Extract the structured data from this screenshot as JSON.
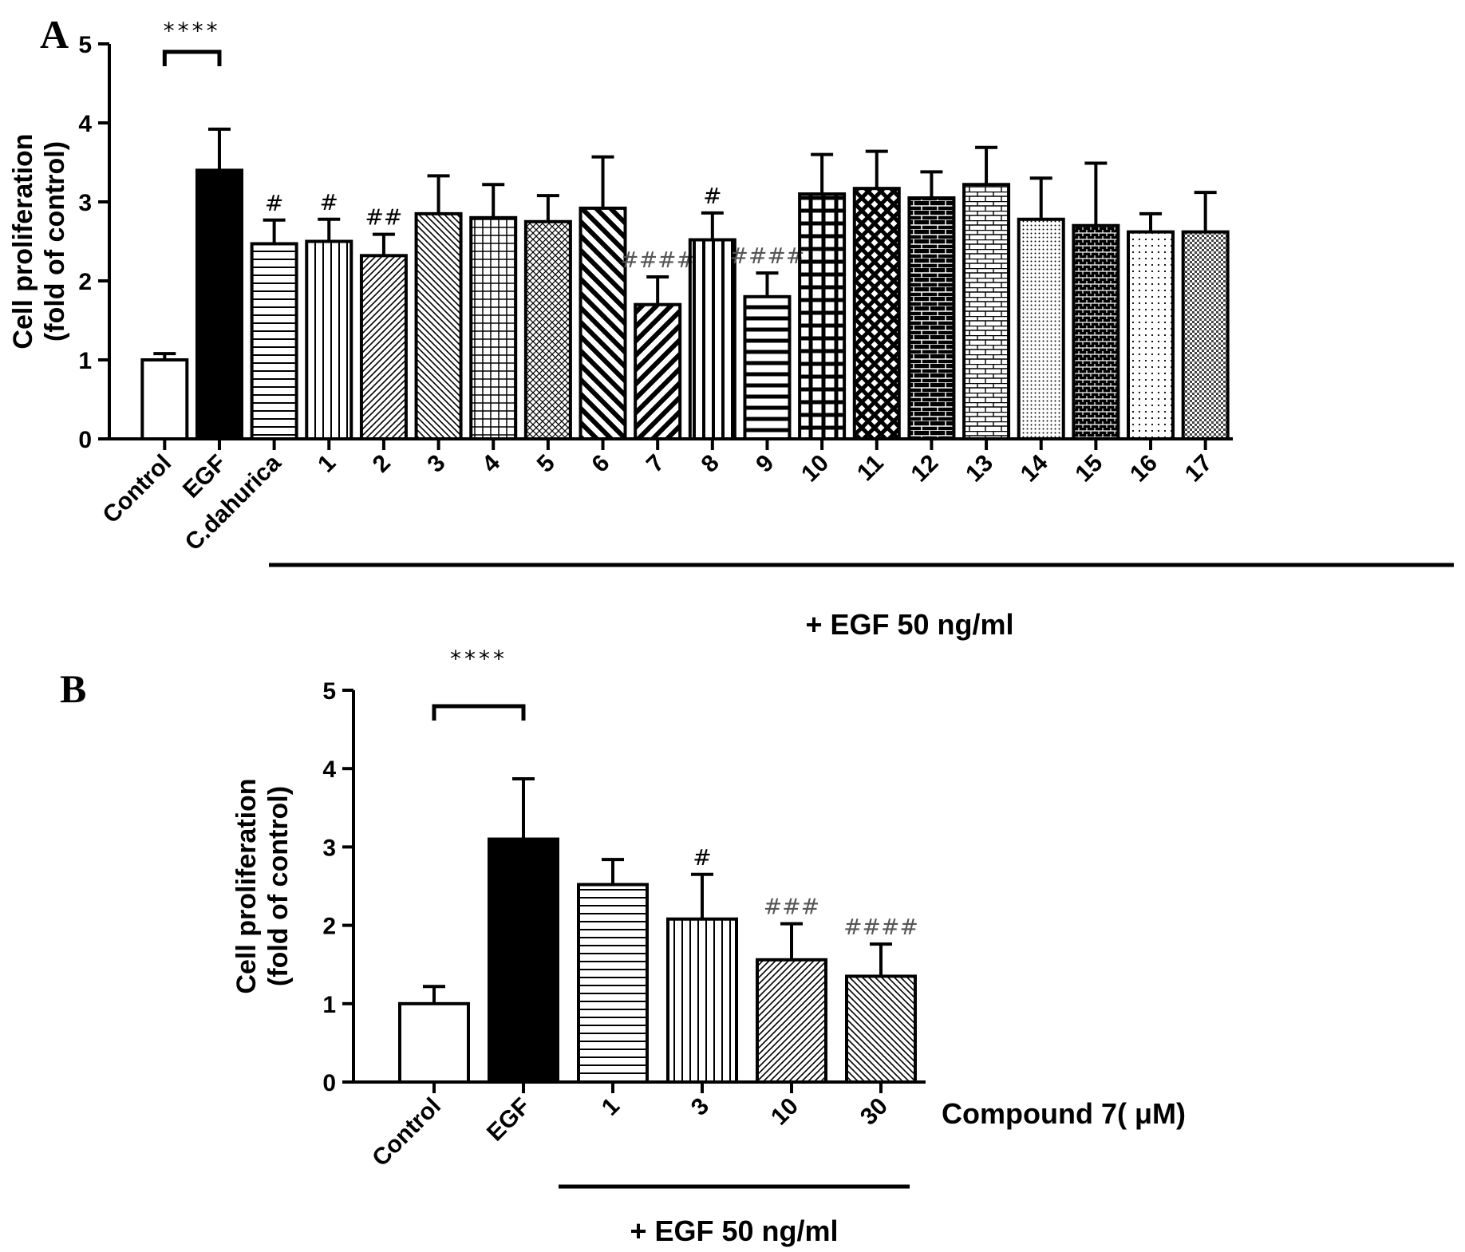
{
  "chart_data": [
    {
      "panel": "A",
      "type": "bar",
      "ylabel": "Cell proliferation\n(fold of control)",
      "ylim": [
        0,
        5
      ],
      "yticks": [
        "0",
        "1",
        "2",
        "3",
        "4",
        "5"
      ],
      "categories": [
        "Control",
        "EGF",
        "C.dahurica",
        "1",
        "2",
        "3",
        "4",
        "5",
        "6",
        "7",
        "8",
        "9",
        "10",
        "11",
        "12",
        "13",
        "14",
        "15",
        "16",
        "17"
      ],
      "values": [
        1.0,
        3.4,
        2.47,
        2.5,
        2.32,
        2.85,
        2.8,
        2.75,
        2.92,
        1.7,
        2.52,
        1.8,
        3.1,
        3.17,
        3.05,
        3.22,
        2.78,
        2.7,
        2.62,
        2.62
      ],
      "errors": [
        0.08,
        0.52,
        0.3,
        0.28,
        0.27,
        0.48,
        0.42,
        0.33,
        0.65,
        0.35,
        0.34,
        0.3,
        0.5,
        0.47,
        0.33,
        0.47,
        0.52,
        0.79,
        0.23,
        0.5
      ],
      "fills": [
        "white",
        "black",
        "hlines",
        "vlines",
        "diag-fine",
        "diag-fine-back",
        "grid",
        "crosshatch-fine",
        "diag-bold-back",
        "diag-bold",
        "vlines-bold",
        "hlines-bold",
        "grid-bold",
        "diamond",
        "brick",
        "brick-light",
        "dots-fine",
        "brick-dense",
        "dots",
        "checker"
      ],
      "annotations": [
        "",
        "",
        "#",
        "#",
        "##",
        "",
        "",
        "",
        "",
        "####",
        "#",
        "####",
        "",
        "",
        "",
        "",
        "",
        "",
        "",
        ""
      ],
      "significance": {
        "pair": [
          "Control",
          "EGF"
        ],
        "label": "****"
      },
      "group_caption": "+ EGF 50 ng/ml"
    },
    {
      "panel": "B",
      "type": "bar",
      "ylabel": "Cell proliferation\n(fold of control)",
      "ylim": [
        0,
        5
      ],
      "yticks": [
        "0",
        "1",
        "2",
        "3",
        "4",
        "5"
      ],
      "categories": [
        "Control",
        "EGF",
        "1",
        "3",
        "10",
        "30"
      ],
      "values": [
        1.0,
        3.1,
        2.52,
        2.08,
        1.56,
        1.35
      ],
      "errors": [
        0.22,
        0.77,
        0.32,
        0.57,
        0.46,
        0.41
      ],
      "fills": [
        "white",
        "black",
        "hlines",
        "vlines",
        "diag-fine",
        "diag-fine-back"
      ],
      "annotations": [
        "",
        "",
        "",
        "#",
        "###",
        "####"
      ],
      "significance": {
        "pair": [
          "Control",
          "EGF"
        ],
        "label": "****"
      },
      "xlabel": "Compound 7( μM)",
      "group_caption": "+ EGF 50 ng/ml"
    }
  ]
}
